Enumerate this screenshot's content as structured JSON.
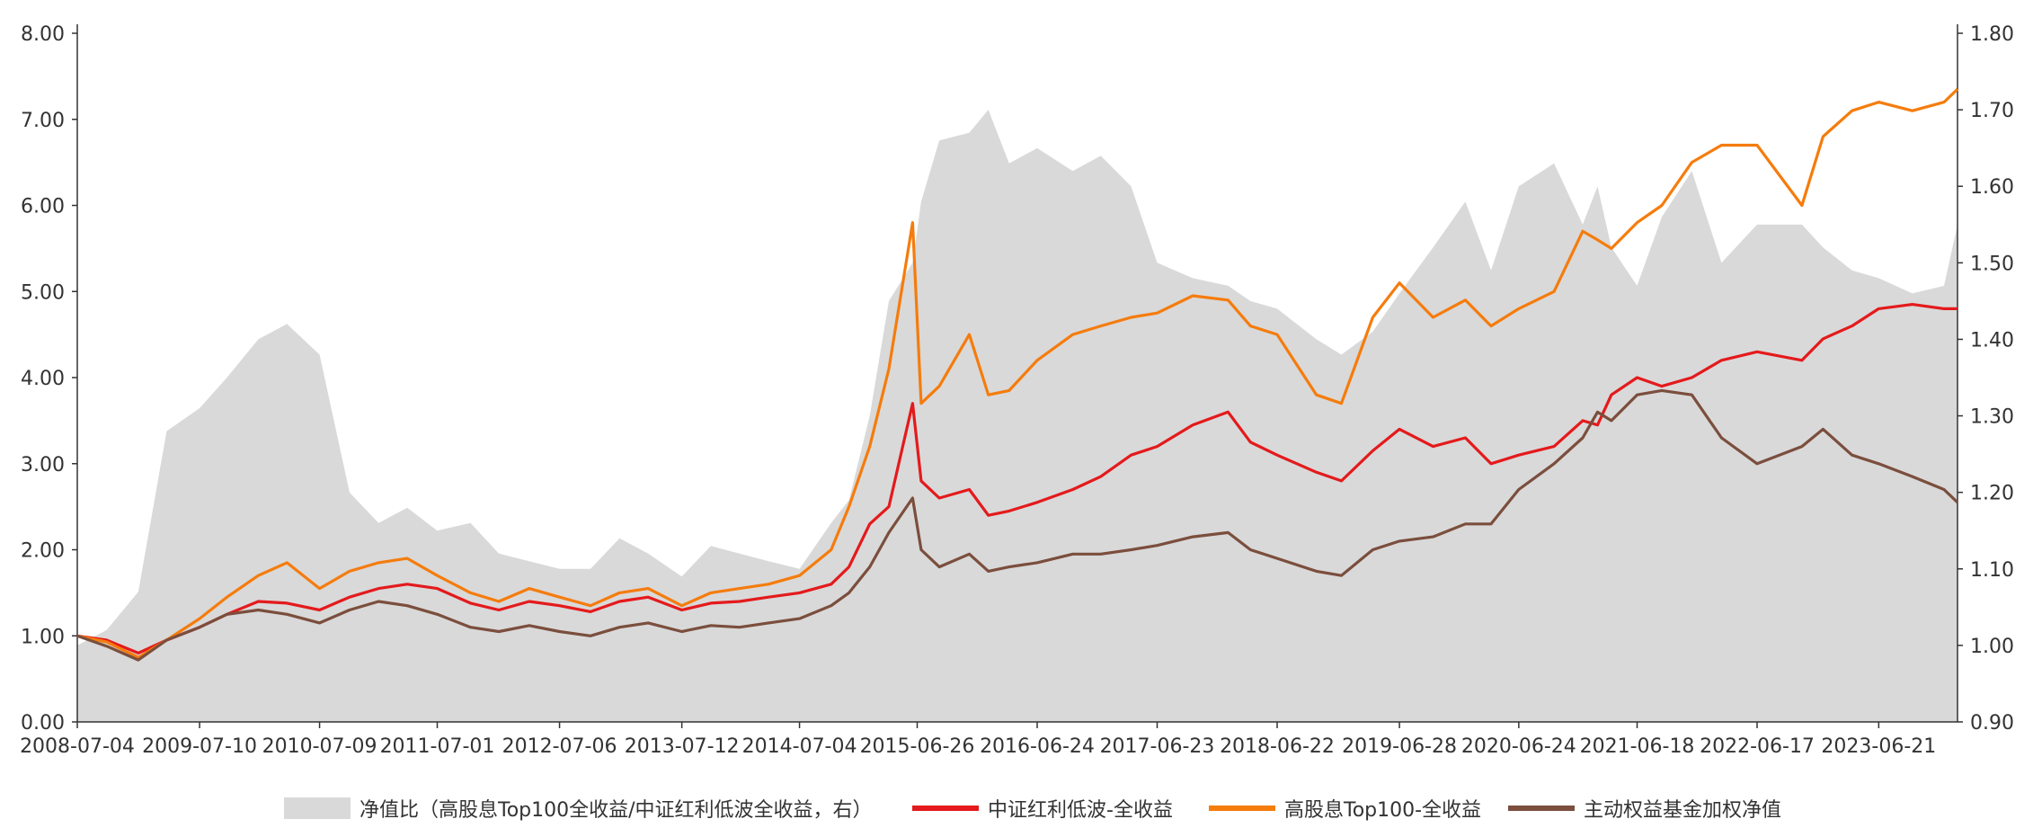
{
  "chart_data": {
    "type": "line",
    "x_dates": [
      "2008-07-04",
      "2008-10-01",
      "2009-01-05",
      "2009-04-01",
      "2009-07-10",
      "2009-10-01",
      "2010-01-04",
      "2010-04-01",
      "2010-07-09",
      "2010-10-08",
      "2011-01-04",
      "2011-04-01",
      "2011-07-01",
      "2011-10-10",
      "2012-01-04",
      "2012-04-05",
      "2012-07-06",
      "2012-10-08",
      "2013-01-04",
      "2013-04-01",
      "2013-07-12",
      "2013-10-08",
      "2014-01-03",
      "2014-04-01",
      "2014-07-04",
      "2014-10-08",
      "2014-12-01",
      "2015-02-02",
      "2015-04-01",
      "2015-06-12",
      "2015-07-08",
      "2015-09-01",
      "2015-12-01",
      "2016-01-28",
      "2016-03-31",
      "2016-06-24",
      "2016-10-10",
      "2017-01-03",
      "2017-04-05",
      "2017-06-23",
      "2017-10-09",
      "2018-01-24",
      "2018-04-02",
      "2018-06-22",
      "2018-10-19",
      "2019-01-03",
      "2019-04-08",
      "2019-06-28",
      "2019-10-08",
      "2020-01-14",
      "2020-04-01",
      "2020-06-24",
      "2020-10-09",
      "2021-01-04",
      "2021-02-18",
      "2021-04-01",
      "2021-06-18",
      "2021-09-01",
      "2021-12-01",
      "2022-03-01",
      "2022-06-17",
      "2022-10-31",
      "2023-01-03",
      "2023-04-01",
      "2023-06-21",
      "2023-10-01",
      "2024-01-05",
      "2024-02-15"
    ],
    "x_tick_labels": [
      "2008-07-04",
      "2009-07-10",
      "2010-07-09",
      "2011-07-01",
      "2012-07-06",
      "2013-07-12",
      "2014-07-04",
      "2015-06-26",
      "2016-06-24",
      "2017-06-23",
      "2018-06-22",
      "2019-06-28",
      "2020-06-24",
      "2021-06-18",
      "2022-06-17",
      "2023-06-21"
    ],
    "y_left": {
      "ticks": [
        "0.00",
        "1.00",
        "2.00",
        "3.00",
        "4.00",
        "5.00",
        "6.00",
        "7.00",
        "8.00"
      ],
      "lim": [
        0,
        8
      ]
    },
    "y_right": {
      "ticks": [
        "0.90",
        "1.00",
        "1.10",
        "1.20",
        "1.30",
        "1.40",
        "1.50",
        "1.60",
        "1.70",
        "1.80"
      ],
      "lim": [
        0.9,
        1.8
      ]
    },
    "series": [
      {
        "name": "净值比（高股息Top100全收益/中证红利低波全收益，右）",
        "type": "area",
        "axis": "right",
        "color": "#d9d9d9",
        "values": [
          1.0,
          1.02,
          1.07,
          1.28,
          1.31,
          1.35,
          1.4,
          1.42,
          1.38,
          1.2,
          1.16,
          1.18,
          1.15,
          1.16,
          1.12,
          1.11,
          1.1,
          1.1,
          1.14,
          1.12,
          1.09,
          1.13,
          1.12,
          1.11,
          1.1,
          1.16,
          1.19,
          1.3,
          1.45,
          1.5,
          1.58,
          1.66,
          1.67,
          1.7,
          1.63,
          1.65,
          1.62,
          1.64,
          1.6,
          1.5,
          1.48,
          1.47,
          1.45,
          1.44,
          1.4,
          1.38,
          1.41,
          1.46,
          1.52,
          1.58,
          1.49,
          1.6,
          1.63,
          1.55,
          1.6,
          1.52,
          1.47,
          1.56,
          1.62,
          1.5,
          1.55,
          1.55,
          1.52,
          1.49,
          1.48,
          1.46,
          1.47,
          1.55
        ]
      },
      {
        "name": "中证红利低波-全收益",
        "type": "line",
        "axis": "left",
        "color": "#e41a1c",
        "values": [
          1.0,
          0.95,
          0.8,
          0.95,
          1.1,
          1.25,
          1.4,
          1.38,
          1.3,
          1.45,
          1.55,
          1.6,
          1.55,
          1.38,
          1.3,
          1.4,
          1.35,
          1.28,
          1.4,
          1.45,
          1.3,
          1.38,
          1.4,
          1.45,
          1.5,
          1.6,
          1.8,
          2.3,
          2.5,
          3.7,
          2.8,
          2.6,
          2.7,
          2.4,
          2.45,
          2.55,
          2.7,
          2.85,
          3.1,
          3.2,
          3.45,
          3.6,
          3.25,
          3.1,
          2.9,
          2.8,
          3.15,
          3.4,
          3.2,
          3.3,
          3.0,
          3.1,
          3.2,
          3.5,
          3.45,
          3.8,
          4.0,
          3.9,
          4.0,
          4.2,
          4.3,
          4.2,
          4.45,
          4.6,
          4.8,
          4.85,
          4.8,
          4.8
        ]
      },
      {
        "name": "高股息Top100-全收益",
        "type": "line",
        "axis": "left",
        "color": "#f57c0d",
        "values": [
          1.0,
          0.93,
          0.75,
          0.95,
          1.2,
          1.45,
          1.7,
          1.85,
          1.55,
          1.75,
          1.85,
          1.9,
          1.7,
          1.5,
          1.4,
          1.55,
          1.45,
          1.35,
          1.5,
          1.55,
          1.35,
          1.5,
          1.55,
          1.6,
          1.7,
          2.0,
          2.5,
          3.2,
          4.1,
          5.8,
          3.7,
          3.9,
          4.5,
          3.8,
          3.85,
          4.2,
          4.5,
          4.6,
          4.7,
          4.75,
          4.95,
          4.9,
          4.6,
          4.5,
          3.8,
          3.7,
          4.7,
          5.1,
          4.7,
          4.9,
          4.6,
          4.8,
          5.0,
          5.7,
          5.6,
          5.5,
          5.8,
          6.0,
          6.5,
          6.7,
          6.7,
          6.0,
          6.8,
          7.1,
          7.2,
          7.1,
          7.2,
          7.35
        ]
      },
      {
        "name": "主动权益基金加权净值",
        "type": "line",
        "axis": "left",
        "color": "#7b4e3d",
        "values": [
          1.0,
          0.88,
          0.72,
          0.95,
          1.1,
          1.25,
          1.3,
          1.25,
          1.15,
          1.3,
          1.4,
          1.35,
          1.25,
          1.1,
          1.05,
          1.12,
          1.05,
          1.0,
          1.1,
          1.15,
          1.05,
          1.12,
          1.1,
          1.15,
          1.2,
          1.35,
          1.5,
          1.8,
          2.2,
          2.6,
          2.0,
          1.8,
          1.95,
          1.75,
          1.8,
          1.85,
          1.95,
          1.95,
          2.0,
          2.05,
          2.15,
          2.2,
          2.0,
          1.9,
          1.75,
          1.7,
          2.0,
          2.1,
          2.15,
          2.3,
          2.3,
          2.7,
          3.0,
          3.3,
          3.6,
          3.5,
          3.8,
          3.85,
          3.8,
          3.3,
          3.0,
          3.2,
          3.4,
          3.1,
          3.0,
          2.85,
          2.7,
          2.55
        ]
      }
    ]
  }
}
